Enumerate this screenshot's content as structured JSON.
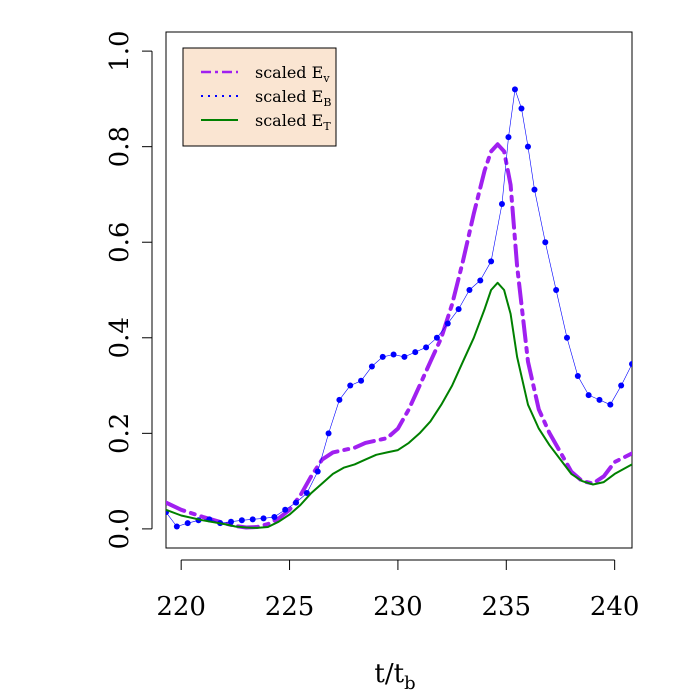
{
  "chart_data": {
    "type": "line",
    "title": "",
    "xlabel_main": "t/t",
    "xlabel_sub": "b",
    "ylabel": "",
    "xlim": [
      219.3,
      240.8
    ],
    "ylim": [
      -0.04,
      1.04
    ],
    "xticks": [
      220,
      225,
      230,
      235,
      240
    ],
    "yticks": [
      0.0,
      0.2,
      0.4,
      0.6,
      0.8,
      1.0
    ],
    "xtick_labels": [
      "220",
      "225",
      "230",
      "235",
      "240"
    ],
    "ytick_labels": [
      "0.0",
      "0.2",
      "0.4",
      "0.6",
      "0.8",
      "1.0"
    ],
    "grid": false,
    "legend_placement": "top-left",
    "legend_background": "#fae5d2",
    "series": [
      {
        "name": "scaled E",
        "subscript": "v",
        "style": "dashdot",
        "color": "#a020f0",
        "x": [
          219.3,
          220.0,
          221.0,
          222.0,
          222.5,
          223.0,
          223.5,
          224.0,
          224.5,
          225.0,
          225.5,
          226.0,
          226.5,
          227.0,
          227.5,
          228.0,
          228.5,
          229.0,
          229.5,
          230.0,
          230.5,
          231.0,
          231.5,
          232.0,
          232.5,
          233.0,
          233.5,
          234.0,
          234.3,
          234.6,
          234.9,
          235.2,
          235.5,
          236.0,
          236.5,
          237.0,
          237.5,
          238.0,
          238.5,
          239.0,
          239.5,
          240.0,
          240.8
        ],
        "y": [
          0.055,
          0.04,
          0.025,
          0.012,
          0.006,
          0.003,
          0.004,
          0.01,
          0.022,
          0.04,
          0.07,
          0.11,
          0.145,
          0.16,
          0.165,
          0.17,
          0.18,
          0.185,
          0.19,
          0.21,
          0.25,
          0.3,
          0.35,
          0.4,
          0.47,
          0.56,
          0.66,
          0.75,
          0.79,
          0.805,
          0.79,
          0.72,
          0.55,
          0.35,
          0.25,
          0.2,
          0.16,
          0.12,
          0.1,
          0.095,
          0.11,
          0.14,
          0.158
        ]
      },
      {
        "name": "scaled E",
        "subscript": "B",
        "style": "dotted",
        "color": "#0000ff",
        "x": [
          219.3,
          219.8,
          220.3,
          220.8,
          221.3,
          221.8,
          222.3,
          222.8,
          223.3,
          223.8,
          224.3,
          224.8,
          225.3,
          225.8,
          226.3,
          226.8,
          227.3,
          227.8,
          228.3,
          228.8,
          229.3,
          229.8,
          230.3,
          230.8,
          231.3,
          231.8,
          232.3,
          232.8,
          233.3,
          233.8,
          234.3,
          234.8,
          235.1,
          235.4,
          235.7,
          236.0,
          236.3,
          236.8,
          237.3,
          237.8,
          238.3,
          238.8,
          239.3,
          239.8,
          240.3,
          240.8
        ],
        "y": [
          0.035,
          0.005,
          0.012,
          0.018,
          0.02,
          0.012,
          0.015,
          0.018,
          0.02,
          0.022,
          0.025,
          0.04,
          0.055,
          0.075,
          0.12,
          0.2,
          0.27,
          0.3,
          0.31,
          0.34,
          0.36,
          0.365,
          0.36,
          0.37,
          0.38,
          0.4,
          0.43,
          0.46,
          0.5,
          0.52,
          0.56,
          0.68,
          0.82,
          0.92,
          0.88,
          0.8,
          0.71,
          0.6,
          0.5,
          0.4,
          0.32,
          0.28,
          0.27,
          0.26,
          0.3,
          0.345
        ]
      },
      {
        "name": "scaled E",
        "subscript": "T",
        "style": "solid",
        "color": "#008000",
        "x": [
          219.3,
          220.0,
          221.0,
          222.0,
          222.5,
          223.0,
          223.5,
          224.0,
          224.5,
          225.0,
          225.5,
          226.0,
          226.5,
          227.0,
          227.5,
          228.0,
          228.5,
          229.0,
          229.5,
          230.0,
          230.5,
          231.0,
          231.5,
          232.0,
          232.5,
          233.0,
          233.5,
          234.0,
          234.3,
          234.6,
          234.9,
          235.2,
          235.5,
          236.0,
          236.5,
          237.0,
          237.5,
          238.0,
          238.5,
          239.0,
          239.5,
          240.0,
          240.8
        ],
        "y": [
          0.04,
          0.028,
          0.018,
          0.01,
          0.005,
          0.003,
          0.002,
          0.004,
          0.015,
          0.03,
          0.05,
          0.075,
          0.095,
          0.115,
          0.128,
          0.135,
          0.145,
          0.155,
          0.16,
          0.165,
          0.18,
          0.2,
          0.225,
          0.26,
          0.3,
          0.35,
          0.4,
          0.46,
          0.5,
          0.515,
          0.5,
          0.45,
          0.36,
          0.26,
          0.21,
          0.175,
          0.145,
          0.115,
          0.1,
          0.093,
          0.098,
          0.115,
          0.135
        ]
      }
    ]
  }
}
